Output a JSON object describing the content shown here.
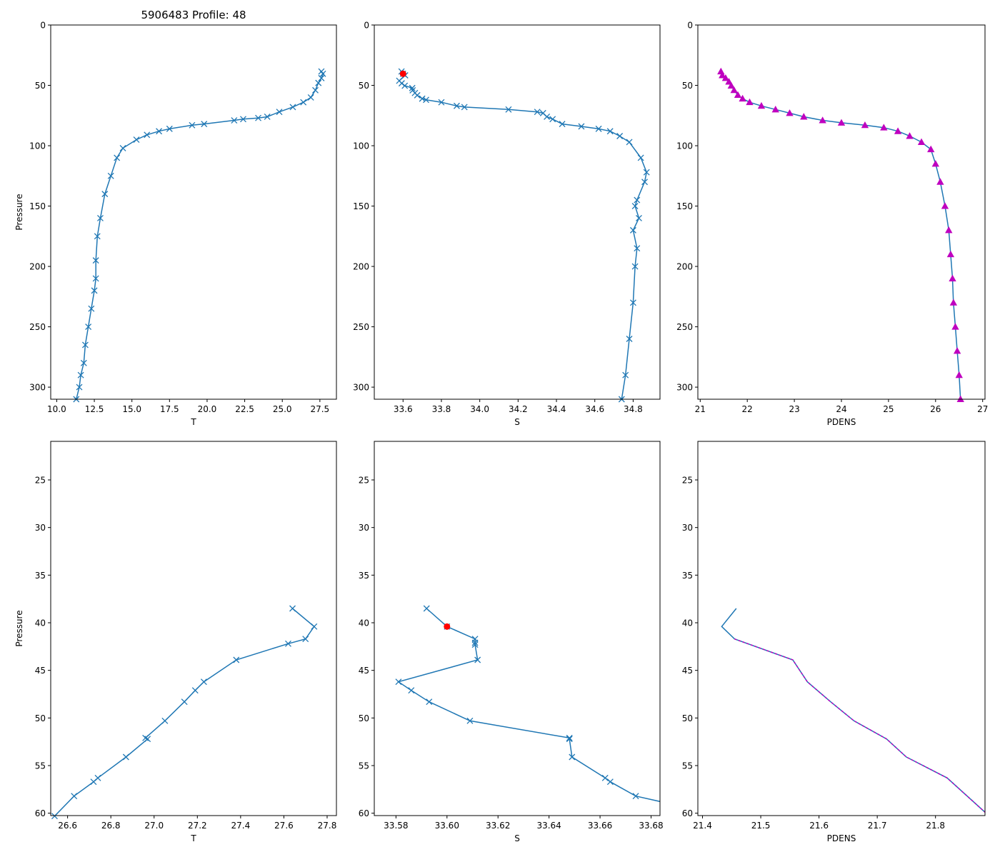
{
  "figure": {
    "title": "5906483 Profile: 48"
  },
  "colors": {
    "line": "#1f77b4",
    "density": "#bf00bf",
    "highlight": "#ff0000"
  },
  "chart_data": [
    {
      "type": "line",
      "panel": "top-T",
      "xlabel": "T",
      "ylabel": "Pressure",
      "title": "5906483 Profile: 48",
      "xlim": [
        9.6,
        28.6
      ],
      "ylim": [
        310,
        0
      ],
      "xticks": [
        10.0,
        12.5,
        15.0,
        17.5,
        20.0,
        22.5,
        25.0,
        27.5
      ],
      "xtick_labels": [
        "10.0",
        "12.5",
        "15.0",
        "17.5",
        "20.0",
        "22.5",
        "25.0",
        "27.5"
      ],
      "yticks": [
        0,
        50,
        100,
        150,
        200,
        250,
        300
      ],
      "ytick_labels": [
        "0",
        "50",
        "100",
        "150",
        "200",
        "250",
        "300"
      ],
      "marker": "x",
      "x": [
        27.6,
        27.7,
        27.6,
        27.4,
        27.2,
        26.9,
        26.4,
        25.7,
        24.8,
        24.0,
        23.4,
        22.4,
        21.8,
        19.8,
        19.0,
        17.5,
        16.8,
        16.0,
        15.3,
        14.4,
        14.0,
        13.6,
        13.2,
        12.9,
        12.7,
        12.6,
        12.6,
        12.5,
        12.3,
        12.1,
        11.9,
        11.8,
        11.6,
        11.5,
        11.3
      ],
      "y": [
        38.5,
        40.4,
        44.0,
        48.0,
        54.0,
        60.0,
        64.0,
        68.0,
        72.0,
        76.0,
        77.0,
        78.0,
        79.0,
        82.0,
        83.0,
        86.0,
        88.0,
        91.0,
        95.0,
        102.0,
        110.0,
        125.0,
        140.0,
        160.0,
        175.0,
        195.0,
        210.0,
        220.0,
        235.0,
        250.0,
        265.0,
        280.0,
        290.0,
        300.0,
        310.0
      ],
      "overlay": []
    },
    {
      "type": "line",
      "panel": "top-S",
      "xlabel": "S",
      "ylabel": "",
      "title": "",
      "xlim": [
        33.45,
        34.94
      ],
      "ylim": [
        310,
        0
      ],
      "xticks": [
        33.6,
        33.8,
        34.0,
        34.2,
        34.4,
        34.6,
        34.8
      ],
      "xtick_labels": [
        "33.6",
        "33.8",
        "34.0",
        "34.2",
        "34.4",
        "34.6",
        "34.8"
      ],
      "yticks": [
        0,
        50,
        100,
        150,
        200,
        250,
        300
      ],
      "ytick_labels": [
        "0",
        "50",
        "100",
        "150",
        "200",
        "250",
        "300"
      ],
      "marker": "x",
      "x": [
        33.592,
        33.6,
        33.611,
        33.58,
        33.593,
        33.609,
        33.648,
        33.65,
        33.662,
        33.674,
        33.7,
        33.72,
        33.8,
        33.88,
        33.92,
        34.15,
        34.3,
        34.33,
        34.35,
        34.38,
        34.43,
        34.53,
        34.62,
        34.68,
        34.73,
        34.78,
        34.84,
        34.87,
        34.86,
        34.82,
        34.81,
        34.83,
        34.8,
        34.82,
        34.81,
        34.8,
        34.78,
        34.76,
        34.74
      ],
      "y": [
        38.5,
        40.4,
        41.7,
        46.2,
        48.3,
        50.3,
        52.2,
        54.1,
        56.3,
        58.2,
        61.0,
        62.0,
        64.0,
        67.0,
        68.0,
        70.0,
        72.0,
        73.0,
        76.0,
        78.0,
        82.0,
        84.0,
        86.0,
        88.0,
        92.0,
        97.0,
        110.0,
        122.0,
        130.0,
        145.0,
        150.0,
        160.0,
        170.0,
        185.0,
        200.0,
        230.0,
        260.0,
        290.0,
        310.0
      ],
      "highlight": {
        "x": [
          33.6
        ],
        "y": [
          40.4
        ]
      },
      "overlay": []
    },
    {
      "type": "line",
      "panel": "top-PDENS",
      "xlabel": "PDENS",
      "ylabel": "",
      "title": "",
      "xlim": [
        20.95,
        27.05
      ],
      "ylim": [
        310,
        0
      ],
      "xticks": [
        21,
        22,
        23,
        24,
        25,
        26,
        27
      ],
      "xtick_labels": [
        "21",
        "22",
        "23",
        "24",
        "25",
        "26",
        "27"
      ],
      "yticks": [
        0,
        50,
        100,
        150,
        200,
        250,
        300
      ],
      "ytick_labels": [
        "0",
        "50",
        "100",
        "150",
        "200",
        "250",
        "300"
      ],
      "marker": "^",
      "x": [
        21.44,
        21.47,
        21.54,
        21.61,
        21.66,
        21.72,
        21.8,
        21.9,
        22.05,
        22.3,
        22.6,
        22.9,
        23.2,
        23.6,
        24.0,
        24.5,
        24.9,
        25.2,
        25.45,
        25.7,
        25.9,
        26.0,
        26.1,
        26.2,
        26.28,
        26.32,
        26.36,
        26.38,
        26.42,
        26.46,
        26.5,
        26.53
      ],
      "y": [
        38.5,
        41.7,
        44.0,
        47.0,
        50.3,
        54.0,
        58.0,
        61.0,
        64.0,
        67.0,
        70.0,
        73.0,
        76.0,
        79.0,
        81.0,
        83.0,
        85.0,
        88.0,
        92.0,
        97.0,
        103.0,
        115.0,
        130.0,
        150.0,
        170.0,
        190.0,
        210.0,
        230.0,
        250.0,
        270.0,
        290.0,
        310.0
      ],
      "overlay": []
    },
    {
      "type": "line",
      "panel": "bottom-T",
      "xlabel": "T",
      "ylabel": "Pressure",
      "title": "",
      "xlim": [
        26.522,
        27.843
      ],
      "ylim": [
        60.25,
        20.95
      ],
      "xticks": [
        26.6,
        26.8,
        27.0,
        27.2,
        27.4,
        27.6,
        27.8
      ],
      "xtick_labels": [
        "26.6",
        "26.8",
        "27.0",
        "27.2",
        "27.4",
        "27.6",
        "27.8"
      ],
      "yticks": [
        25,
        30,
        35,
        40,
        45,
        50,
        55,
        60
      ],
      "ytick_labels": [
        "25",
        "30",
        "35",
        "40",
        "45",
        "50",
        "55",
        "60"
      ],
      "marker": "x",
      "x": [
        27.64,
        27.74,
        27.7,
        27.62,
        27.38,
        27.23,
        27.19,
        27.14,
        27.05,
        26.96,
        26.97,
        26.87,
        26.74,
        26.72,
        26.63,
        26.54
      ],
      "y": [
        38.5,
        40.4,
        41.7,
        42.2,
        43.9,
        46.2,
        47.1,
        48.3,
        50.3,
        52.1,
        52.2,
        54.1,
        56.3,
        56.7,
        58.2,
        60.3
      ],
      "overlay": []
    },
    {
      "type": "line",
      "panel": "bottom-S",
      "xlabel": "S",
      "ylabel": "",
      "title": "",
      "xlim": [
        33.5715,
        33.6835
      ],
      "ylim": [
        60.25,
        20.95
      ],
      "xticks": [
        33.58,
        33.6,
        33.62,
        33.64,
        33.66,
        33.68
      ],
      "xtick_labels": [
        "33.58",
        "33.60",
        "33.62",
        "33.64",
        "33.66",
        "33.68"
      ],
      "yticks": [
        25,
        30,
        35,
        40,
        45,
        50,
        55,
        60
      ],
      "ytick_labels": [
        "25",
        "30",
        "35",
        "40",
        "45",
        "50",
        "55",
        "60"
      ],
      "marker": "x",
      "x": [
        33.592,
        33.6,
        33.611,
        33.611,
        33.611,
        33.612,
        33.581,
        33.586,
        33.593,
        33.609,
        33.648,
        33.648,
        33.649,
        33.662,
        33.664,
        33.674,
        33.684
      ],
      "y": [
        38.5,
        40.4,
        41.7,
        42.1,
        42.3,
        43.9,
        46.2,
        47.1,
        48.3,
        50.3,
        52.1,
        52.2,
        54.1,
        56.3,
        56.7,
        58.2,
        58.8
      ],
      "highlight": {
        "x": [
          33.6
        ],
        "y": [
          40.4
        ]
      },
      "overlay": []
    },
    {
      "type": "line",
      "panel": "bottom-PDENS",
      "xlabel": "PDENS",
      "ylabel": "",
      "title": "",
      "xlim": [
        21.392,
        21.885
      ],
      "ylim": [
        60.25,
        20.95
      ],
      "xticks": [
        21.4,
        21.5,
        21.6,
        21.7,
        21.8
      ],
      "xtick_labels": [
        "21.4",
        "21.5",
        "21.6",
        "21.7",
        "21.8"
      ],
      "yticks": [
        25,
        30,
        35,
        40,
        45,
        50,
        55,
        60
      ],
      "ytick_labels": [
        "25",
        "30",
        "35",
        "40",
        "45",
        "50",
        "55",
        "60"
      ],
      "marker": "",
      "x": [
        21.458,
        21.433,
        21.455,
        21.555,
        21.58,
        21.62,
        21.66,
        21.716,
        21.75,
        21.82,
        21.885
      ],
      "y": [
        38.5,
        40.4,
        41.7,
        43.9,
        46.2,
        48.3,
        50.3,
        52.2,
        54.1,
        56.3,
        59.9
      ],
      "overlay": [
        {
          "x": [
            21.455,
            21.555,
            21.58,
            21.62,
            21.66,
            21.716,
            21.75,
            21.82,
            21.885
          ],
          "y": [
            41.7,
            43.9,
            46.2,
            48.3,
            50.3,
            52.2,
            54.1,
            56.3,
            59.9
          ]
        }
      ]
    }
  ]
}
